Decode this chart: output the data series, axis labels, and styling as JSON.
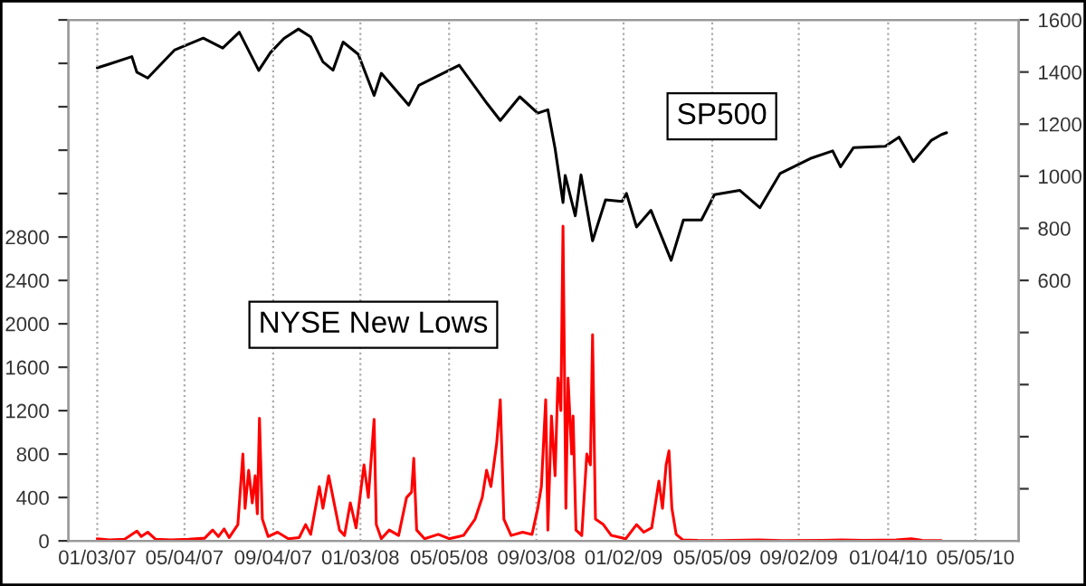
{
  "chart_data": {
    "type": "line",
    "xlim": [
      "2006-11-24",
      "2010-07-04"
    ],
    "xticks": [
      {
        "value": "2007-01-03",
        "label": "01/03/07"
      },
      {
        "value": "2007-05-04",
        "label": "05/04/07"
      },
      {
        "value": "2007-09-04",
        "label": "09/04/07"
      },
      {
        "value": "2008-01-03",
        "label": "01/03/08"
      },
      {
        "value": "2008-05-05",
        "label": "05/05/08"
      },
      {
        "value": "2008-09-03",
        "label": "09/03/08"
      },
      {
        "value": "2009-01-02",
        "label": "01/02/09"
      },
      {
        "value": "2009-05-05",
        "label": "05/05/09"
      },
      {
        "value": "2009-09-02",
        "label": "09/02/09"
      },
      {
        "value": "2010-01-04",
        "label": "01/04/10"
      },
      {
        "value": "2010-05-05",
        "label": "05/05/10"
      }
    ],
    "ylim": [
      0,
      4800
    ],
    "yticks": [
      0,
      400,
      800,
      1200,
      1600,
      2000,
      2400,
      2800,
      {
        "value": 3200,
        "label": null
      },
      {
        "value": 3600,
        "label": null
      },
      {
        "value": 4000,
        "label": null
      },
      {
        "value": 4400,
        "label": null
      },
      {
        "value": 4800,
        "label": null
      }
    ],
    "y2lim": [
      -400,
      1600
    ],
    "y2ticks": [
      {
        "value": -200,
        "label": null
      },
      {
        "value": 0,
        "label": null
      },
      {
        "value": 200,
        "label": null
      },
      {
        "value": 400,
        "label": null
      },
      600,
      800,
      1000,
      1200,
      1400,
      1600
    ],
    "grid": "x",
    "line_style": "solid",
    "series": [
      {
        "name": "SP500",
        "color": "#000000",
        "axis": "y2",
        "x": [
          "2007-01-03",
          "2007-01-19",
          "2007-02-20",
          "2007-02-27",
          "2007-03-14",
          "2007-04-20",
          "2007-05-30",
          "2007-06-26",
          "2007-07-19",
          "2007-08-15",
          "2007-08-31",
          "2007-09-19",
          "2007-10-09",
          "2007-10-26",
          "2007-11-12",
          "2007-11-26",
          "2007-12-10",
          "2007-12-31",
          "2008-01-22",
          "2008-02-01",
          "2008-03-10",
          "2008-03-24",
          "2008-05-19",
          "2008-06-27",
          "2008-07-15",
          "2008-08-11",
          "2008-09-05",
          "2008-09-19",
          "2008-09-29",
          "2008-10-10",
          "2008-10-13",
          "2008-10-27",
          "2008-11-04",
          "2008-11-20",
          "2008-12-08",
          "2008-12-31",
          "2009-01-06",
          "2009-01-20",
          "2009-02-09",
          "2009-03-09",
          "2009-03-26",
          "2009-04-20",
          "2009-05-08",
          "2009-06-12",
          "2009-07-10",
          "2009-08-07",
          "2009-09-18",
          "2009-10-19",
          "2009-10-30",
          "2009-11-17",
          "2009-12-31",
          "2010-01-19",
          "2010-02-08",
          "2010-03-05",
          "2010-03-19",
          "2010-03-26"
        ],
        "values": [
          1416,
          1430,
          1459,
          1399,
          1377,
          1484,
          1530,
          1492,
          1553,
          1406,
          1474,
          1529,
          1565,
          1535,
          1439,
          1407,
          1515,
          1468,
          1310,
          1395,
          1273,
          1349,
          1426,
          1278,
          1214,
          1305,
          1242,
          1255,
          1106,
          899,
          1003,
          848,
          1005,
          752,
          909,
          903,
          934,
          805,
          869,
          677,
          832,
          832,
          929,
          946,
          879,
          1010,
          1068,
          1097,
          1036,
          1110,
          1115,
          1150,
          1056,
          1138,
          1160,
          1167
        ]
      },
      {
        "name": "NYSE New Lows",
        "color": "#ff0000",
        "x": [
          "2007-01-03",
          "2007-01-20",
          "2007-02-10",
          "2007-02-27",
          "2007-03-05",
          "2007-03-14",
          "2007-03-25",
          "2007-04-15",
          "2007-05-10",
          "2007-06-01",
          "2007-06-12",
          "2007-06-20",
          "2007-06-28",
          "2007-07-05",
          "2007-07-17",
          "2007-07-24",
          "2007-07-27",
          "2007-08-01",
          "2007-08-06",
          "2007-08-10",
          "2007-08-13",
          "2007-08-16",
          "2007-08-20",
          "2007-08-28",
          "2007-09-10",
          "2007-09-25",
          "2007-10-10",
          "2007-10-19",
          "2007-10-26",
          "2007-11-07",
          "2007-11-12",
          "2007-11-20",
          "2007-11-26",
          "2007-12-05",
          "2007-12-12",
          "2007-12-20",
          "2007-12-28",
          "2008-01-08",
          "2008-01-14",
          "2008-01-22",
          "2008-01-25",
          "2008-02-01",
          "2008-02-12",
          "2008-02-25",
          "2008-03-07",
          "2008-03-14",
          "2008-03-17",
          "2008-03-21",
          "2008-04-01",
          "2008-04-20",
          "2008-05-05",
          "2008-05-25",
          "2008-06-10",
          "2008-06-20",
          "2008-06-26",
          "2008-07-02",
          "2008-07-10",
          "2008-07-15",
          "2008-07-20",
          "2008-07-30",
          "2008-08-15",
          "2008-08-28",
          "2008-09-05",
          "2008-09-10",
          "2008-09-16",
          "2008-09-19",
          "2008-09-24",
          "2008-09-29",
          "2008-10-03",
          "2008-10-07",
          "2008-10-10",
          "2008-10-14",
          "2008-10-17",
          "2008-10-22",
          "2008-10-24",
          "2008-10-28",
          "2008-11-05",
          "2008-11-12",
          "2008-11-17",
          "2008-11-20",
          "2008-11-24",
          "2008-12-05",
          "2008-12-16",
          "2009-01-05",
          "2009-01-20",
          "2009-01-30",
          "2009-02-10",
          "2009-02-20",
          "2009-02-25",
          "2009-03-02",
          "2009-03-06",
          "2009-03-10",
          "2009-03-16",
          "2009-03-25",
          "2009-04-15",
          "2009-05-15",
          "2009-07-08",
          "2009-08-10",
          "2009-10-05",
          "2009-11-01",
          "2009-12-01",
          "2010-01-15",
          "2010-02-05",
          "2010-02-20",
          "2010-03-19"
        ],
        "values": [
          20,
          10,
          15,
          90,
          40,
          80,
          15,
          10,
          15,
          25,
          100,
          40,
          110,
          30,
          150,
          800,
          300,
          650,
          350,
          600,
          250,
          1130,
          200,
          40,
          80,
          20,
          30,
          150,
          60,
          500,
          300,
          600,
          400,
          100,
          50,
          350,
          120,
          700,
          400,
          1120,
          150,
          20,
          100,
          50,
          400,
          450,
          760,
          100,
          20,
          60,
          20,
          50,
          200,
          400,
          650,
          500,
          900,
          1300,
          200,
          50,
          80,
          60,
          300,
          500,
          1300,
          100,
          1150,
          600,
          1500,
          1200,
          2900,
          300,
          1500,
          800,
          1150,
          100,
          50,
          800,
          700,
          1900,
          200,
          150,
          50,
          20,
          150,
          80,
          120,
          550,
          300,
          700,
          830,
          300,
          60,
          10,
          5,
          3,
          8,
          2,
          5,
          10,
          5,
          10,
          20,
          5,
          3
        ]
      }
    ]
  }
}
